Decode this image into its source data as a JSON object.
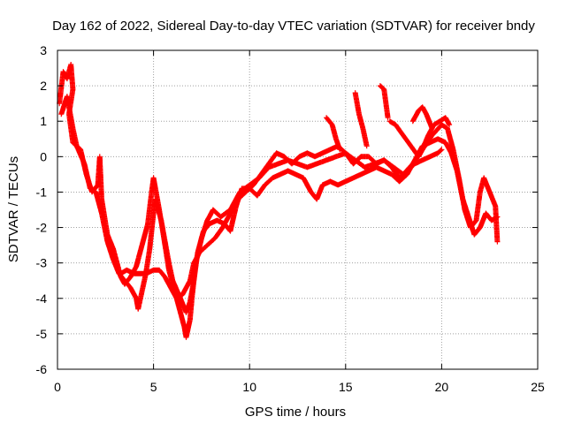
{
  "chart_data": {
    "type": "scatter",
    "title": "Day 162 of 2022, Sidereal Day-to-day VTEC variation (SDTVAR) for receiver bndy",
    "xlabel": "GPS time / hours",
    "ylabel": "SDTVAR / TECUs",
    "xlim": [
      0,
      25
    ],
    "ylim": [
      -6,
      3
    ],
    "xticks": [
      0,
      5,
      10,
      15,
      20,
      25
    ],
    "yticks": [
      -6,
      -5,
      -4,
      -3,
      -2,
      -1,
      0,
      1,
      2,
      3
    ],
    "grid": true,
    "marker": "plus",
    "series": [
      {
        "name": "SDTVAR",
        "color": "#ff0000",
        "segments": [
          [
            [
              0.1,
              1.5
            ],
            [
              0.3,
              2.4
            ],
            [
              0.5,
              2.2
            ],
            [
              0.7,
              2.6
            ],
            [
              0.8,
              1.9
            ],
            [
              0.6,
              1.2
            ],
            [
              0.8,
              0.4
            ],
            [
              1.2,
              0.2
            ],
            [
              1.5,
              -0.5
            ],
            [
              1.8,
              -1.0
            ],
            [
              2.1,
              -0.8
            ],
            [
              2.2,
              0.0
            ],
            [
              2.3,
              -1.2
            ],
            [
              2.6,
              -2.2
            ],
            [
              2.9,
              -2.6
            ],
            [
              3.1,
              -3.0
            ],
            [
              3.3,
              -3.4
            ],
            [
              3.5,
              -3.6
            ],
            [
              3.8,
              -3.4
            ],
            [
              4.1,
              -3.1
            ],
            [
              4.4,
              -2.5
            ],
            [
              4.7,
              -1.9
            ],
            [
              4.9,
              -1.0
            ],
            [
              5.0,
              -0.6
            ],
            [
              5.3,
              -1.5
            ],
            [
              5.6,
              -2.5
            ],
            [
              5.8,
              -3.2
            ],
            [
              6.0,
              -3.6
            ],
            [
              6.3,
              -4.2
            ],
            [
              6.6,
              -4.8
            ],
            [
              6.7,
              -5.1
            ],
            [
              6.9,
              -4.6
            ],
            [
              7.0,
              -4.0
            ],
            [
              7.2,
              -3.0
            ],
            [
              7.5,
              -2.3
            ],
            [
              7.8,
              -1.8
            ],
            [
              8.1,
              -1.5
            ],
            [
              8.5,
              -1.7
            ],
            [
              9.0,
              -1.5
            ],
            [
              9.5,
              -1.0
            ],
            [
              10.0,
              -0.8
            ],
            [
              10.5,
              -0.6
            ],
            [
              11.0,
              -0.3
            ],
            [
              11.5,
              -0.2
            ],
            [
              12.0,
              -0.1
            ],
            [
              12.5,
              -0.2
            ],
            [
              13.0,
              -0.3
            ],
            [
              13.5,
              -0.2
            ],
            [
              14.0,
              -0.1
            ],
            [
              14.5,
              0.0
            ],
            [
              15.0,
              0.1
            ],
            [
              15.5,
              -0.1
            ],
            [
              16.0,
              -0.3
            ],
            [
              16.5,
              -0.2
            ],
            [
              17.0,
              -0.1
            ],
            [
              17.5,
              -0.3
            ],
            [
              18.0,
              -0.5
            ],
            [
              18.5,
              -0.2
            ],
            [
              19.0,
              0.2
            ],
            [
              19.5,
              0.6
            ],
            [
              20.0,
              0.9
            ],
            [
              20.3,
              0.8
            ],
            [
              20.6,
              0.2
            ],
            [
              20.9,
              -0.6
            ],
            [
              21.2,
              -1.5
            ],
            [
              21.5,
              -2.0
            ],
            [
              21.8,
              -1.8
            ],
            [
              22.0,
              -1.0
            ],
            [
              22.2,
              -0.6
            ],
            [
              22.5,
              -1.0
            ],
            [
              22.8,
              -1.4
            ],
            [
              22.9,
              -2.4
            ]
          ],
          [
            [
              0.2,
              1.2
            ],
            [
              0.5,
              1.7
            ],
            [
              0.8,
              0.8
            ],
            [
              1.0,
              0.3
            ],
            [
              1.4,
              -0.2
            ],
            [
              1.7,
              -0.9
            ],
            [
              2.0,
              -1.0
            ],
            [
              2.3,
              -1.6
            ],
            [
              2.6,
              -2.4
            ],
            [
              2.9,
              -2.9
            ],
            [
              3.2,
              -3.3
            ],
            [
              3.5,
              -3.5
            ],
            [
              3.8,
              -3.7
            ],
            [
              4.1,
              -4.0
            ],
            [
              4.2,
              -4.3
            ],
            [
              4.4,
              -3.8
            ],
            [
              4.6,
              -3.3
            ],
            [
              4.8,
              -2.6
            ],
            [
              5.0,
              -1.6
            ],
            [
              5.1,
              -1.2
            ],
            [
              5.4,
              -1.8
            ],
            [
              5.6,
              -2.4
            ],
            [
              5.8,
              -3.0
            ],
            [
              6.0,
              -3.5
            ],
            [
              6.4,
              -4.0
            ],
            [
              6.7,
              -4.4
            ],
            [
              6.9,
              -4.1
            ],
            [
              7.1,
              -3.5
            ],
            [
              7.3,
              -2.7
            ],
            [
              7.6,
              -2.1
            ],
            [
              7.9,
              -1.9
            ],
            [
              8.3,
              -1.8
            ],
            [
              8.7,
              -1.9
            ],
            [
              9.0,
              -2.1
            ],
            [
              9.3,
              -1.4
            ],
            [
              9.6,
              -0.9
            ],
            [
              10.0,
              -0.9
            ],
            [
              10.4,
              -1.1
            ],
            [
              10.8,
              -0.8
            ],
            [
              11.2,
              -0.6
            ],
            [
              11.6,
              -0.5
            ],
            [
              12.0,
              -0.4
            ],
            [
              12.4,
              -0.5
            ],
            [
              12.8,
              -0.6
            ],
            [
              13.2,
              -1.0
            ],
            [
              13.5,
              -1.2
            ],
            [
              13.8,
              -0.8
            ],
            [
              14.2,
              -0.7
            ],
            [
              14.6,
              -0.8
            ],
            [
              15.0,
              -0.7
            ],
            [
              15.4,
              -0.6
            ],
            [
              15.8,
              -0.5
            ],
            [
              16.2,
              -0.4
            ],
            [
              16.6,
              -0.3
            ],
            [
              17.0,
              -0.4
            ],
            [
              17.4,
              -0.5
            ],
            [
              17.8,
              -0.7
            ],
            [
              18.2,
              -0.5
            ],
            [
              18.6,
              -0.1
            ],
            [
              19.0,
              0.3
            ],
            [
              19.4,
              0.4
            ],
            [
              19.8,
              0.5
            ],
            [
              20.2,
              0.4
            ],
            [
              20.5,
              0.1
            ],
            [
              20.8,
              -0.4
            ],
            [
              21.1,
              -1.2
            ],
            [
              21.4,
              -1.7
            ],
            [
              21.7,
              -2.2
            ],
            [
              22.0,
              -2.0
            ],
            [
              22.3,
              -1.6
            ],
            [
              22.6,
              -1.8
            ],
            [
              22.9,
              -1.7
            ]
          ],
          [
            [
              3.3,
              -3.3
            ],
            [
              3.6,
              -3.2
            ],
            [
              4.0,
              -3.3
            ],
            [
              4.3,
              -3.3
            ],
            [
              4.6,
              -3.3
            ],
            [
              5.0,
              -3.2
            ],
            [
              5.3,
              -3.2
            ],
            [
              5.6,
              -3.4
            ],
            [
              5.9,
              -3.7
            ],
            [
              6.2,
              -4.0
            ],
            [
              6.5,
              -3.9
            ],
            [
              6.9,
              -3.5
            ],
            [
              7.1,
              -3.0
            ],
            [
              7.4,
              -2.7
            ],
            [
              7.8,
              -2.5
            ],
            [
              8.2,
              -2.3
            ],
            [
              8.6,
              -2.0
            ],
            [
              9.0,
              -1.6
            ],
            [
              9.4,
              -1.2
            ],
            [
              9.8,
              -1.0
            ],
            [
              10.2,
              -0.8
            ],
            [
              10.6,
              -0.5
            ],
            [
              11.0,
              -0.2
            ],
            [
              11.4,
              0.1
            ],
            [
              11.8,
              0.0
            ],
            [
              12.2,
              -0.2
            ],
            [
              12.6,
              0.0
            ],
            [
              13.0,
              0.1
            ],
            [
              13.4,
              0.0
            ],
            [
              13.8,
              0.1
            ],
            [
              14.2,
              0.2
            ],
            [
              14.6,
              0.3
            ],
            [
              15.0,
              0.1
            ],
            [
              15.4,
              -0.2
            ],
            [
              15.8,
              0.0
            ],
            [
              16.2,
              0.0
            ],
            [
              16.6,
              -0.2
            ],
            [
              17.0,
              -0.1
            ],
            [
              17.4,
              -0.3
            ],
            [
              17.8,
              -0.6
            ],
            [
              18.2,
              -0.4
            ],
            [
              18.6,
              -0.2
            ],
            [
              19.0,
              -0.1
            ],
            [
              19.4,
              0.0
            ],
            [
              19.8,
              0.1
            ],
            [
              20.0,
              0.2
            ]
          ],
          [
            [
              14.0,
              1.1
            ],
            [
              14.3,
              0.9
            ],
            [
              14.5,
              0.5
            ],
            [
              14.7,
              0.2
            ]
          ],
          [
            [
              15.5,
              1.8
            ],
            [
              15.7,
              1.2
            ],
            [
              15.9,
              0.8
            ],
            [
              16.1,
              0.3
            ]
          ],
          [
            [
              16.8,
              2.0
            ],
            [
              17.0,
              1.9
            ],
            [
              17.2,
              1.1
            ]
          ],
          [
            [
              17.3,
              1.0
            ],
            [
              17.6,
              0.9
            ],
            [
              18.0,
              0.6
            ],
            [
              18.4,
              0.3
            ],
            [
              18.8,
              0.0
            ],
            [
              19.0,
              0.2
            ],
            [
              19.3,
              0.6
            ],
            [
              19.6,
              0.9
            ],
            [
              19.9,
              1.0
            ],
            [
              20.2,
              1.1
            ],
            [
              20.4,
              0.9
            ]
          ],
          [
            [
              18.5,
              1.0
            ],
            [
              18.8,
              1.3
            ],
            [
              19.0,
              1.4
            ],
            [
              19.2,
              1.2
            ],
            [
              19.5,
              0.8
            ]
          ]
        ]
      }
    ]
  }
}
